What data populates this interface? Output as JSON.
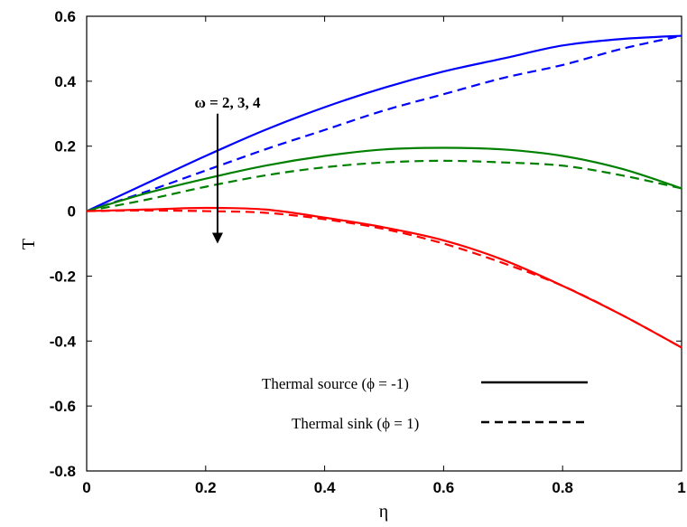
{
  "chart_data": {
    "type": "line",
    "xlabel": "η",
    "ylabel": "T",
    "xlim": [
      0,
      1
    ],
    "ylim": [
      -0.8,
      0.6
    ],
    "x_ticks": [
      "0",
      "0.2",
      "0.4",
      "0.6",
      "0.8",
      "1"
    ],
    "y_ticks": [
      "-0.8",
      "-0.6",
      "-0.4",
      "-0.2",
      "0",
      "0.2",
      "0.4",
      "0.6"
    ],
    "x": [
      0,
      0.1,
      0.2,
      0.3,
      0.4,
      0.5,
      0.6,
      0.7,
      0.8,
      0.9,
      1.0
    ],
    "series": [
      {
        "group": "ω = 2",
        "style": "solid",
        "color": "#0000ff",
        "values": [
          0,
          0.085,
          0.17,
          0.25,
          0.32,
          0.38,
          0.43,
          0.47,
          0.51,
          0.53,
          0.54
        ]
      },
      {
        "group": "ω = 2",
        "style": "dashed",
        "color": "#0000ff",
        "values": [
          0,
          0.06,
          0.125,
          0.19,
          0.25,
          0.31,
          0.36,
          0.41,
          0.45,
          0.5,
          0.54
        ]
      },
      {
        "group": "ω = 3",
        "style": "solid",
        "color": "#008000",
        "values": [
          0,
          0.055,
          0.1,
          0.14,
          0.17,
          0.19,
          0.195,
          0.19,
          0.17,
          0.13,
          0.07
        ]
      },
      {
        "group": "ω = 3",
        "style": "dashed",
        "color": "#008000",
        "values": [
          0,
          0.035,
          0.075,
          0.11,
          0.135,
          0.15,
          0.155,
          0.15,
          0.14,
          0.11,
          0.07
        ]
      },
      {
        "group": "ω = 4",
        "style": "solid",
        "color": "#ff0000",
        "values": [
          0,
          0.005,
          0.01,
          0.005,
          -0.02,
          -0.05,
          -0.09,
          -0.15,
          -0.23,
          -0.32,
          -0.42
        ]
      },
      {
        "group": "ω = 4",
        "style": "dashed",
        "color": "#ff0000",
        "values": [
          0,
          0.002,
          0.0,
          -0.005,
          -0.025,
          -0.055,
          -0.1,
          -0.16,
          -0.23,
          -0.32,
          -0.42
        ]
      }
    ],
    "legend": {
      "position": "lower-right",
      "entries": [
        {
          "label": "Thermal source (ϕ = -1)",
          "style": "solid"
        },
        {
          "label": "Thermal sink (ϕ = 1)",
          "style": "dashed"
        }
      ]
    },
    "annotation": {
      "text": "ω = 2, 3, 4",
      "arrow_x": 0.22,
      "arrow_from_y": 0.3,
      "arrow_to_y": -0.1
    }
  }
}
